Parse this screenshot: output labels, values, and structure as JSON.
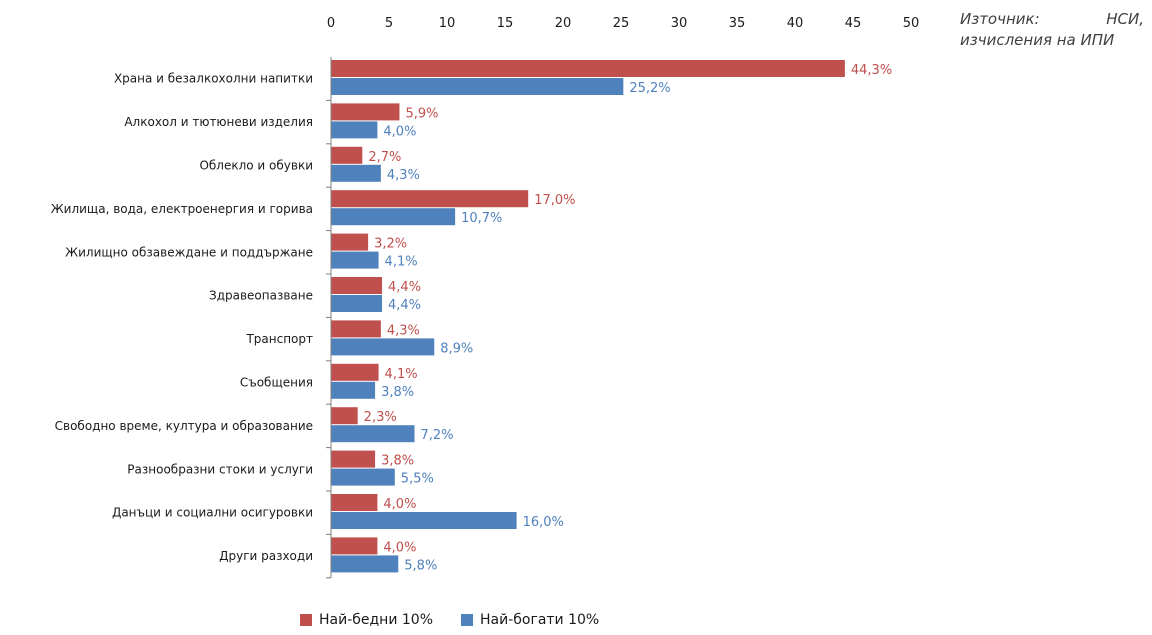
{
  "source": {
    "line1_a": "Източник:",
    "line1_b": "НСИ,",
    "line2": "изчисления на ИПИ"
  },
  "chart_data": {
    "type": "bar",
    "orientation": "horizontal",
    "categories": [
      "Храна и безалкохолни напитки",
      "Алкохол и тютюневи изделия",
      "Облекло и обувки",
      "Жилища, вода, електроенергия и горива",
      "Жилищно обзавеждане и поддържане",
      "Здравеопазване",
      "Транспорт",
      "Съобщения",
      "Свободно време, култура и образование",
      "Разнообразни стоки и услуги",
      "Данъци и социални осигуровки",
      "Други разходи"
    ],
    "series": [
      {
        "name": "Най-бедни 10%",
        "color": "#c0504d",
        "values": [
          44.3,
          5.9,
          2.7,
          17.0,
          3.2,
          4.4,
          4.3,
          4.1,
          2.3,
          3.8,
          4.0,
          4.0
        ],
        "labels": [
          "44,3%",
          "5,9%",
          "2,7%",
          "17,0%",
          "3,2%",
          "4,4%",
          "4,3%",
          "4,1%",
          "2,3%",
          "3,8%",
          "4,0%",
          "4,0%"
        ]
      },
      {
        "name": "Най-богати 10%",
        "color": "#4f81bd",
        "values": [
          25.2,
          4.0,
          4.3,
          10.7,
          4.1,
          4.4,
          8.9,
          3.8,
          7.2,
          5.5,
          16.0,
          5.8
        ],
        "labels": [
          "25,2%",
          "4,0%",
          "4,3%",
          "10,7%",
          "4,1%",
          "4,4%",
          "8,9%",
          "3,8%",
          "7,2%",
          "5,5%",
          "16,0%",
          "5,8%"
        ]
      }
    ],
    "xlim": [
      0,
      50
    ],
    "xticks": [
      "0",
      "5",
      "10",
      "15",
      "20",
      "25",
      "30",
      "35",
      "40",
      "45",
      "50"
    ],
    "xaxis_position": "top",
    "grid": false,
    "legend_position": "bottom"
  }
}
